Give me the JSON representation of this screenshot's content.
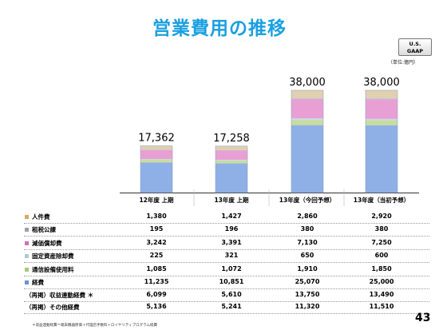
{
  "title": "営業費用の推移",
  "badge": {
    "line1": "U.S.",
    "line2": "GAAP"
  },
  "unit_note": "（単位:億円）",
  "chart_data": {
    "type": "bar",
    "stacked": true,
    "title": "営業費用の推移",
    "categories": [
      "12年度 上期",
      "13年度 上期",
      "13年度（今回予想）",
      "13年度（当初予想）"
    ],
    "totals": [
      17362,
      17258,
      38000,
      38000
    ],
    "total_labels": [
      "17,362",
      "17,258",
      "38,000",
      "38,000"
    ],
    "series": [
      {
        "name": "経費",
        "values": [
          11235,
          10851,
          25070,
          25000
        ],
        "color": "#8fb0e6"
      },
      {
        "name": "通信設備使用料",
        "values": [
          1085,
          1072,
          1910,
          1850
        ],
        "color": "#c8dca0"
      },
      {
        "name": "固定資産除却費",
        "values": [
          225,
          321,
          650,
          600
        ],
        "color": "#c8dce6"
      },
      {
        "name": "減価償却費",
        "values": [
          3242,
          3391,
          7130,
          7250
        ],
        "color": "#e8a0d4"
      },
      {
        "name": "租税公課",
        "values": [
          195,
          196,
          380,
          380
        ],
        "color": "#c0c8d6"
      },
      {
        "name": "人件費",
        "values": [
          1380,
          1427,
          2860,
          2920
        ],
        "color": "#e0d0b0"
      }
    ],
    "ylim": [
      0,
      38000
    ],
    "grid": false,
    "legend": "left table"
  },
  "table": {
    "rows": [
      {
        "label": "人件費",
        "color": "#d8a866",
        "values": [
          "1,380",
          "1,427",
          "2,860",
          "2,920"
        ]
      },
      {
        "label": "租税公課",
        "color": "#9aa0b0",
        "values": [
          "195",
          "196",
          "380",
          "380"
        ]
      },
      {
        "label": "減価償却費",
        "color": "#d070b8",
        "values": [
          "3,242",
          "3,391",
          "7,130",
          "7,250"
        ]
      },
      {
        "label": "固定資産除却費",
        "color": "#b0c8d6",
        "values": [
          "225",
          "321",
          "650",
          "600"
        ]
      },
      {
        "label": "通信設備使用料",
        "color": "#a8c878",
        "values": [
          "1,085",
          "1,072",
          "1,910",
          "1,850"
        ]
      },
      {
        "label": "経費",
        "color": "#6a90d8",
        "values": [
          "11,235",
          "10,851",
          "25,070",
          "25,000"
        ]
      },
      {
        "label": "（再掲）収益連動経費 ＊",
        "color": "",
        "values": [
          "6,099",
          "5,610",
          "13,750",
          "13,490"
        ]
      },
      {
        "label": "（再掲）その他経費",
        "color": "",
        "values": [
          "5,136",
          "5,241",
          "11,320",
          "11,510"
        ]
      }
    ]
  },
  "footnote": "＊収益連動経費＝端末機器原価＋代理店手数料＋ロイヤリティプログラム経費",
  "page_number": "43"
}
